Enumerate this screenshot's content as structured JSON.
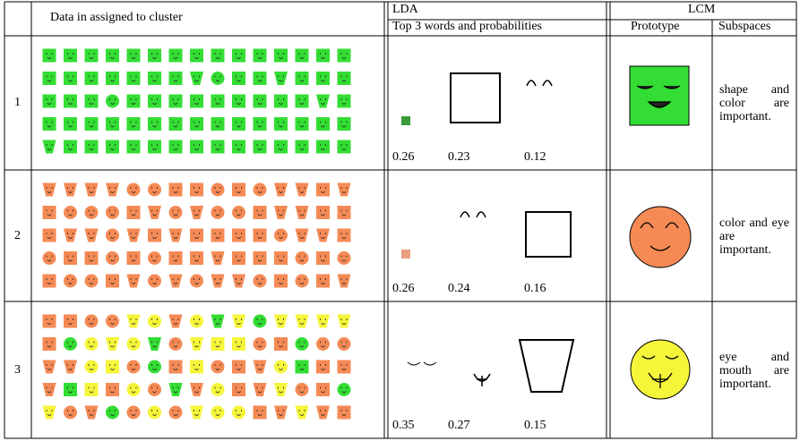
{
  "header": {
    "data_column": "Data in assigned to cluster",
    "lda": "LDA",
    "lda_sub": "Top 3 words and probabilities",
    "lcm": "LCM",
    "prototype": "Prototype",
    "subspaces": "Subspaces"
  },
  "rows": [
    {
      "cluster": "1",
      "probabilities": [
        0.26,
        0.23,
        0.12
      ],
      "subspaces": "shape and color are important."
    },
    {
      "cluster": "2",
      "probabilities": [
        0.26,
        0.24,
        0.16
      ],
      "subspaces": "color and eye are important."
    },
    {
      "cluster": "3",
      "probabilities": [
        0.35,
        0.27,
        0.15
      ],
      "subspaces": "eye and mouth are important."
    }
  ]
}
